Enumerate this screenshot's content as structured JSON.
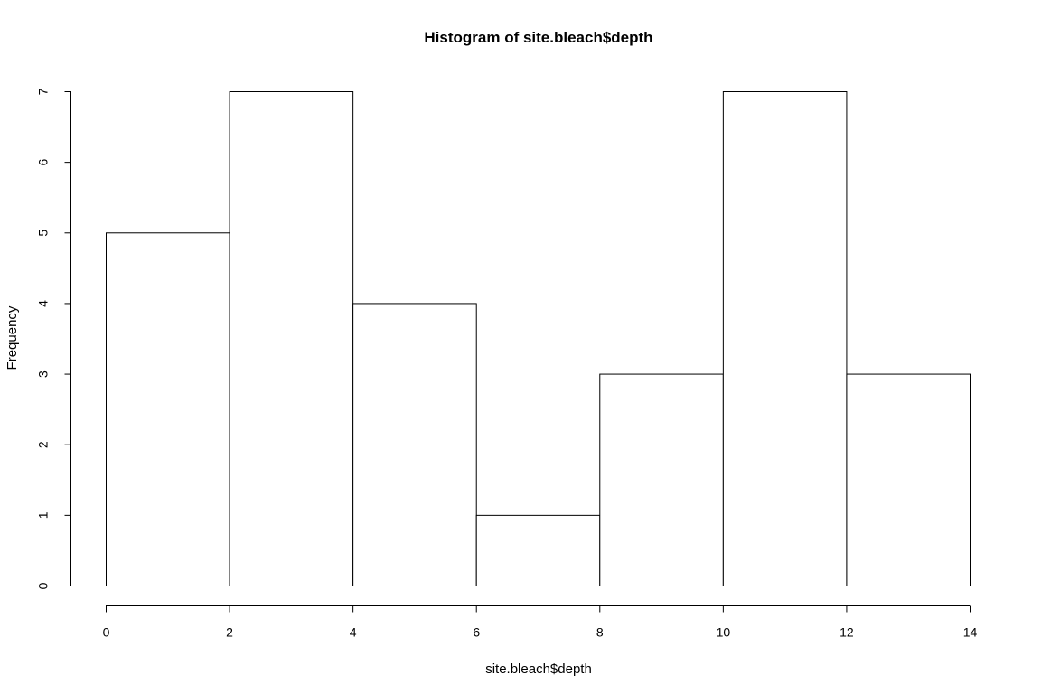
{
  "chart_data": {
    "type": "bar",
    "title": "Histogram of site.bleach$depth",
    "xlabel": "site.bleach$depth",
    "ylabel": "Frequency",
    "bins": [
      {
        "from": 0,
        "to": 2,
        "count": 5
      },
      {
        "from": 2,
        "to": 4,
        "count": 7
      },
      {
        "from": 4,
        "to": 6,
        "count": 4
      },
      {
        "from": 6,
        "to": 8,
        "count": 1
      },
      {
        "from": 8,
        "to": 10,
        "count": 3
      },
      {
        "from": 10,
        "to": 12,
        "count": 7
      },
      {
        "from": 12,
        "to": 14,
        "count": 3
      }
    ],
    "xlim": [
      0,
      14
    ],
    "ylim": [
      0,
      7
    ],
    "x_ticks": [
      "0",
      "2",
      "4",
      "6",
      "8",
      "10",
      "12",
      "14"
    ],
    "y_ticks": [
      "0",
      "1",
      "2",
      "3",
      "4",
      "5",
      "6",
      "7"
    ],
    "grid": false,
    "bar_fill": "#ffffff",
    "bar_stroke": "#000000"
  }
}
